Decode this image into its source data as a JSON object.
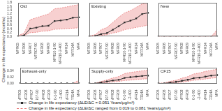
{
  "chart_data": [
    {
      "type": "line",
      "title": "Old",
      "ylabel": "Change in life expectancy (months)",
      "legend": "bottom",
      "categories": [
        "MFR05",
        "MFR06",
        "MFR07",
        "MFR07-90",
        "MFR08",
        "MFR09",
        "MFR10-1-90",
        "MFR10-2-400",
        "MFR14",
        "MFR14A",
        "MFA"
      ],
      "series": [
        {
          "name": "Change in life expectancy (ΔLE/ΔC = 0.051 Years/μg/m³)",
          "color": "#2a2a2a",
          "marker": "square",
          "line_style": "solid",
          "values": [
            0.01,
            0.06,
            0.42,
            0.47,
            0.55,
            0.57,
            0.82,
            0.85,
            0.9,
            1.0,
            1.02
          ]
        },
        {
          "name": "Change in life expectancy (ΔLE/ΔC ranged from 0.019 to 0.081 Years/μg/m³)",
          "type": "band",
          "color": "#e87878",
          "line_style": "dashed",
          "upper": [
            0.04,
            0.18,
            0.9,
            1.0,
            1.1,
            1.2,
            1.48,
            1.52,
            1.58,
            1.65,
            1.7
          ],
          "lower": [
            0.01,
            0.05,
            0.2,
            0.22,
            0.28,
            0.3,
            0.38,
            0.4,
            0.42,
            0.44,
            0.46
          ]
        }
      ],
      "ylim": [
        0,
        1.8
      ],
      "yticks": [
        {
          "value": 0,
          "label": "0.0"
        },
        0.2,
        0.4,
        0.6,
        0.8,
        {
          "value": 1,
          "label": "1.0"
        },
        1.2,
        1.4,
        1.6,
        1.8
      ],
      "grid": false
    },
    {
      "type": "line",
      "title": "Existing",
      "tick_labels": "x",
      "categories": [
        "MFR05",
        "MFR06",
        "MFR07",
        "MFR07-90",
        "MFR08",
        "MFR09",
        "MFR10-1-90",
        "MFR10-2-400",
        "MFR14",
        "MFR14A",
        "MFA"
      ],
      "series": [
        {
          "name": "Change in life expectancy (ΔLE/ΔC = 0.051 Years/μg/m³)",
          "color": "#2a2a2a",
          "marker": "square",
          "line_style": "solid",
          "values": [
            0.0,
            0.01,
            0.04,
            0.06,
            0.12,
            0.18,
            0.25,
            0.28,
            0.32,
            0.4,
            0.42
          ]
        },
        {
          "name": "Change in life expectancy (ΔLE/ΔC ranged from 0.019 to 0.081 Years/μg/m³)",
          "type": "band",
          "color": "#e87878",
          "line_style": "dashed",
          "upper": [
            0.01,
            0.03,
            0.12,
            0.16,
            0.25,
            0.34,
            0.42,
            0.46,
            0.52,
            0.58,
            0.6
          ],
          "lower": [
            0.0,
            0.0,
            0.02,
            0.03,
            0.06,
            0.08,
            0.12,
            0.14,
            0.16,
            0.18,
            0.2
          ]
        }
      ],
      "ylim": [
        0,
        0.6
      ],
      "yticks": [
        0,
        0.2,
        0.4,
        0.6
      ],
      "grid": false
    },
    {
      "type": "line",
      "title": "New",
      "tick_labels": "x",
      "categories": [
        "MFR05",
        "MFR06",
        "MFR07",
        "MFR07-90",
        "MFR08",
        "MFR09",
        "MFR10-1-90",
        "MFR10-2-400",
        "MFR14",
        "MFR14A",
        "MFA"
      ],
      "series": [
        {
          "name": "Change in life expectancy (ΔLE/ΔC = 0.051 Years/μg/m³)",
          "color": "#2a2a2a",
          "marker": "square",
          "line_style": "solid",
          "values": [
            0.0,
            0.0,
            0.0,
            0.0,
            0.0,
            0.0,
            0.0,
            0.0,
            0.0,
            0.0,
            0.0
          ]
        },
        {
          "name": "Change in life expectancy (ΔLE/ΔC ranged from 0.019 to 0.081 Years/μg/m³)",
          "type": "band",
          "color": "#e87878",
          "line_style": "dashed",
          "upper": [
            0.0,
            0.0,
            0.0,
            0.0,
            0.0,
            0.0,
            0.0,
            0.0,
            0.0,
            0.0,
            0.01
          ],
          "lower": [
            0.0,
            0.0,
            0.0,
            0.0,
            0.0,
            0.0,
            0.0,
            0.0,
            0.0,
            0.0,
            0.0
          ]
        }
      ],
      "ylim": [
        0,
        0.05
      ],
      "yticks": [
        0,
        0.02,
        0.04
      ],
      "grid": false
    },
    {
      "type": "line",
      "title": "Exhaust-only",
      "categories": [
        "MFR05",
        "MFR06",
        "MFR07",
        "MFR07-90",
        "MFR08",
        "MFR09",
        "MFR10-1-90",
        "MFR10-2-400",
        "MFR14",
        "MFR14A",
        "MFA"
      ],
      "series": [
        {
          "name": "Change in life expectancy (ΔLE/ΔC = 0.051 Years/μg/m³)",
          "color": "#2a2a2a",
          "marker": "square",
          "line_style": "solid",
          "values": [
            0.0,
            0.0,
            0.0,
            0.0,
            0.0,
            0.0,
            0.0,
            0.0,
            0.0,
            0.0,
            0.0
          ]
        },
        {
          "name": "Change in life expectancy (ΔLE/ΔC ranged from 0.019 to 0.081 Years/μg/m³)",
          "type": "band",
          "color": "#e87878",
          "line_style": "dashed",
          "upper": [
            0.0,
            0.0,
            0.0,
            0.0,
            0.0,
            0.0,
            0.0,
            0.0,
            0.0,
            0.0,
            0.01
          ],
          "lower": [
            0.0,
            0.0,
            0.0,
            0.0,
            0.0,
            0.0,
            0.0,
            0.0,
            0.0,
            0.0,
            0.0
          ]
        }
      ],
      "ylim": [
        0,
        0.05
      ],
      "yticks": [
        {
          "value": 0,
          "label": "0.00"
        },
        0.02,
        0.04
      ],
      "grid": false
    },
    {
      "type": "line",
      "title": "Supply-only",
      "tick_labels": "x",
      "categories": [
        "MFR05",
        "MFR06",
        "MFR07",
        "MFR07-90",
        "MFR08",
        "MFR09",
        "MFR10-1-90",
        "MFR10-2-400",
        "MFR14",
        "MFR14A",
        "MFA"
      ],
      "series": [
        {
          "name": "Change in life expectancy (ΔLE/ΔC = 0.051 Years/μg/m³)",
          "color": "#2a2a2a",
          "marker": "square",
          "line_style": "solid",
          "values": [
            0.0,
            0.0,
            0.05,
            0.1,
            0.15,
            0.18,
            0.28,
            0.32,
            0.35,
            0.38,
            0.4
          ]
        },
        {
          "name": "Change in life expectancy (ΔLE/ΔC ranged from 0.019 to 0.081 Years/μg/m³)",
          "type": "band",
          "color": "#e87878",
          "line_style": "dashed",
          "upper": [
            0.0,
            0.01,
            0.1,
            0.18,
            0.28,
            0.35,
            0.5,
            0.56,
            0.6,
            0.64,
            0.68
          ],
          "lower": [
            0.0,
            0.0,
            0.02,
            0.04,
            0.08,
            0.1,
            0.15,
            0.17,
            0.2,
            0.22,
            0.24
          ]
        }
      ],
      "ylim": [
        0,
        0.8
      ],
      "yticks": [
        0,
        0.2,
        0.4,
        0.6,
        0.8
      ],
      "grid": false
    },
    {
      "type": "line",
      "title": "CF15",
      "tick_labels": "x",
      "categories": [
        "MFR05",
        "MFR06",
        "MFR07",
        "MFR07-90",
        "MFR08",
        "MFR09",
        "MFR10-1-90",
        "MFR10-2-400",
        "MFR14",
        "MFR14A",
        "MFA"
      ],
      "series": [
        {
          "name": "Change in life expectancy (ΔLE/ΔC = 0.051 Years/μg/m³)",
          "color": "#2a2a2a",
          "marker": "square",
          "line_style": "solid",
          "values": [
            0.0,
            0.0,
            0.03,
            0.06,
            0.1,
            0.14,
            0.2,
            0.22,
            0.26,
            0.3,
            0.32
          ]
        },
        {
          "name": "Change in life expectancy (ΔLE/ΔC ranged from 0.019 to 0.081 Years/μg/m³)",
          "type": "band",
          "color": "#e87878",
          "line_style": "dashed",
          "upper": [
            0.01,
            0.02,
            0.08,
            0.12,
            0.2,
            0.26,
            0.36,
            0.4,
            0.46,
            0.5,
            0.54
          ],
          "lower": [
            0.0,
            0.0,
            0.01,
            0.03,
            0.05,
            0.08,
            0.12,
            0.14,
            0.17,
            0.2,
            0.22
          ]
        }
      ],
      "ylim": [
        0,
        0.6
      ],
      "yticks": [
        0,
        0.2,
        0.4,
        0.6
      ],
      "grid": false
    }
  ]
}
